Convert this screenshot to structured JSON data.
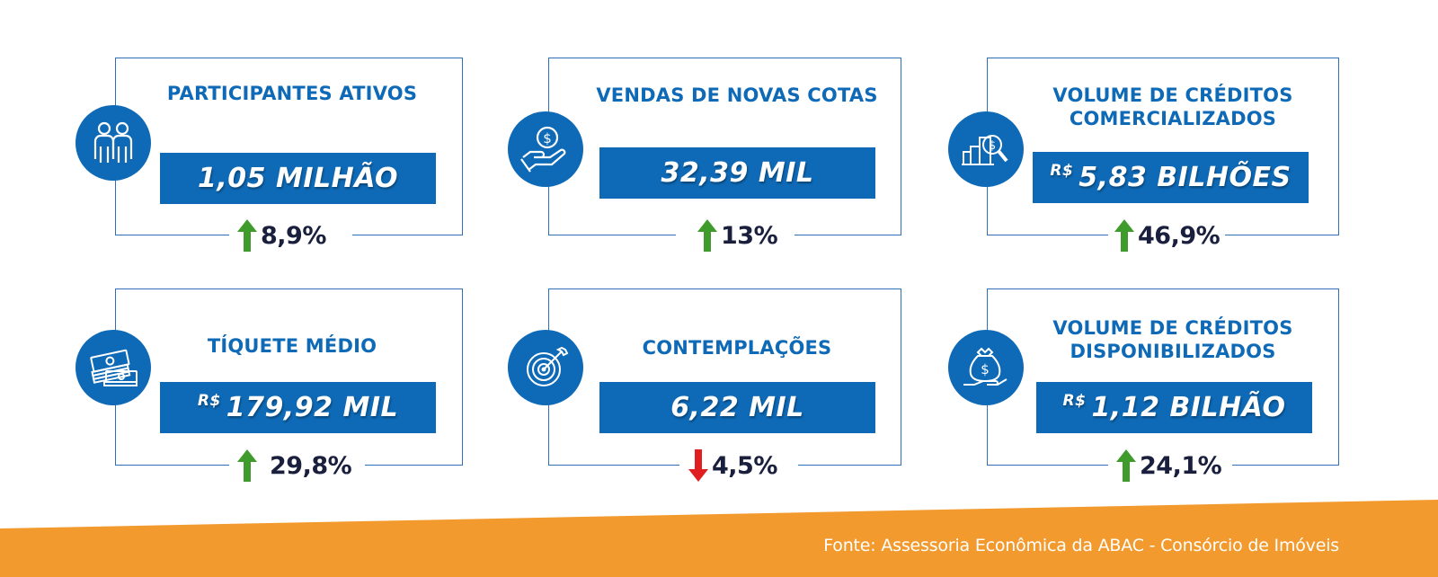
{
  "colors": {
    "brand_blue": "#0e6ab7",
    "border_blue": "#2f6fb6",
    "dark_text": "#1a1f3d",
    "up_green": "#3f9b2c",
    "down_red": "#e02020",
    "footer_orange": "#f29a2e"
  },
  "cards": [
    {
      "title_line1": "PARTICIPANTES ATIVOS",
      "title_line2": "",
      "icon": "people-icon",
      "currency": "",
      "value": "1,05 MILHÃO",
      "trend": "up",
      "change": "8,9%"
    },
    {
      "title_line1": "VENDAS DE NOVAS COTAS",
      "title_line2": "",
      "icon": "hand-coin-icon",
      "currency": "",
      "value": "32,39 MIL",
      "trend": "up",
      "change": "13%"
    },
    {
      "title_line1": "VOLUME DE CRÉDITOS",
      "title_line2": "COMERCIALIZADOS",
      "icon": "money-magnifier-icon",
      "currency": "R$",
      "value": "5,83 BILHÕES",
      "trend": "up",
      "change": "46,9%"
    },
    {
      "title_line1": "TÍQUETE MÉDIO",
      "title_line2": "",
      "icon": "cash-stack-icon",
      "currency": "R$",
      "value": "179,92 MIL",
      "trend": "up",
      "change": "29,8%"
    },
    {
      "title_line1": "CONTEMPLAÇÕES",
      "title_line2": "",
      "icon": "target-icon",
      "currency": "",
      "value": "6,22 MIL",
      "trend": "down",
      "change": "4,5%"
    },
    {
      "title_line1": "VOLUME DE CRÉDITOS",
      "title_line2": "DISPONIBILIZADOS",
      "icon": "money-bag-hand-icon",
      "currency": "R$",
      "value": "1,12 BILHÃO",
      "trend": "up",
      "change": "24,1%"
    }
  ],
  "footer": {
    "source": "Fonte: Assessoria Econômica da ABAC - Consórcio de Imóveis"
  }
}
